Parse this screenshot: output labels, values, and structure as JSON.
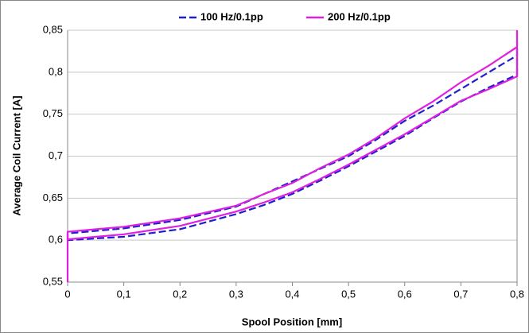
{
  "chart_data": {
    "type": "line",
    "xlabel": "Spool Position [mm]",
    "ylabel": "Average Coil Current [A]",
    "xlim": [
      0,
      0.8
    ],
    "ylim": [
      0.55,
      0.85
    ],
    "xticks": [
      0,
      {
        "value": 0.1,
        "label": "0,1"
      },
      {
        "value": 0.2,
        "label": "0,2"
      },
      {
        "value": 0.3,
        "label": "0,3"
      },
      {
        "value": 0.4,
        "label": "0,4"
      },
      {
        "value": 0.5,
        "label": "0,5"
      },
      {
        "value": 0.6,
        "label": "0,6"
      },
      {
        "value": 0.7,
        "label": "0,7"
      },
      {
        "value": 0.8,
        "label": "0,8"
      }
    ],
    "yticks": [
      {
        "value": 0.55,
        "label": "0,55"
      },
      {
        "value": 0.6,
        "label": "0,6"
      },
      {
        "value": 0.65,
        "label": "0,65"
      },
      {
        "value": 0.7,
        "label": "0,7"
      },
      {
        "value": 0.75,
        "label": "0,75"
      },
      {
        "value": 0.8,
        "label": "0,8"
      },
      {
        "value": 0.85,
        "label": "0,85"
      }
    ],
    "grid": true,
    "legend": "top",
    "series": [
      {
        "name": "100 Hz/0.1pp",
        "color": "#1f1fd0",
        "line_style": "dashed",
        "x": [
          0,
          0,
          0.1,
          0.2,
          0.3,
          0.35,
          0.4,
          0.45,
          0.5,
          0.55,
          0.6,
          0.65,
          0.7,
          0.75,
          0.8,
          0.8,
          0.8,
          0.75,
          0.7,
          0.65,
          0.6,
          0.55,
          0.5,
          0.45,
          0.4,
          0.35,
          0.3,
          0.2,
          0.1,
          0,
          0
        ],
        "values": [
          0.6,
          0.608,
          0.614,
          0.624,
          0.64,
          0.655,
          0.67,
          0.685,
          0.7,
          0.72,
          0.742,
          0.76,
          0.78,
          0.8,
          0.82,
          0.83,
          0.797,
          0.782,
          0.765,
          0.745,
          0.724,
          0.706,
          0.688,
          0.671,
          0.655,
          0.642,
          0.631,
          0.613,
          0.604,
          0.6,
          0.6
        ]
      },
      {
        "name": "200 Hz/0.1pp",
        "color": "#e020e0",
        "line_style": "solid",
        "x": [
          0,
          0,
          0.1,
          0.2,
          0.3,
          0.35,
          0.4,
          0.45,
          0.5,
          0.55,
          0.6,
          0.65,
          0.7,
          0.75,
          0.8,
          0.8,
          0.8,
          0.75,
          0.7,
          0.65,
          0.6,
          0.55,
          0.5,
          0.45,
          0.4,
          0.35,
          0.3,
          0.2,
          0.1,
          0,
          0
        ],
        "values": [
          0.55,
          0.61,
          0.616,
          0.626,
          0.641,
          0.655,
          0.668,
          0.686,
          0.702,
          0.722,
          0.745,
          0.765,
          0.788,
          0.808,
          0.83,
          0.85,
          0.795,
          0.78,
          0.766,
          0.746,
          0.726,
          0.708,
          0.69,
          0.673,
          0.657,
          0.645,
          0.634,
          0.617,
          0.607,
          0.601,
          0.55
        ]
      }
    ]
  }
}
